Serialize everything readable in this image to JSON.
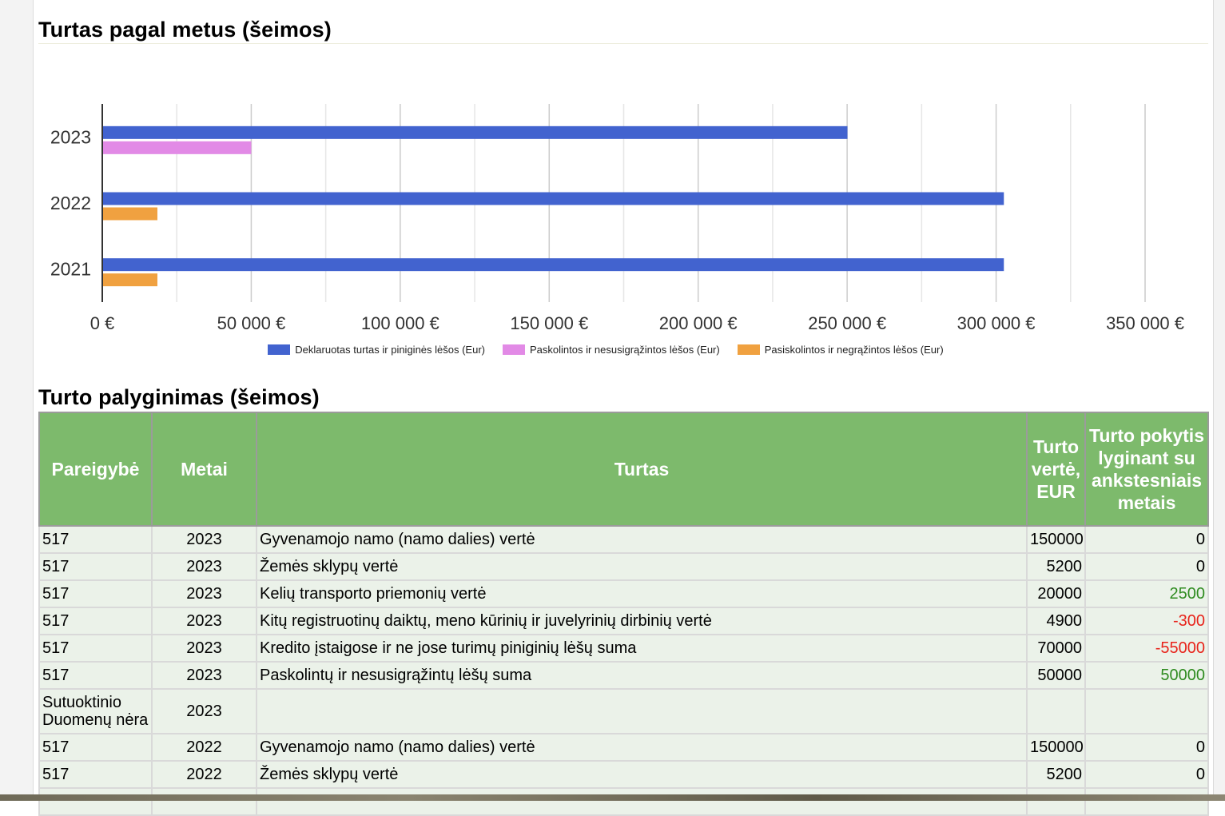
{
  "chart_title": "Turtas pagal metus (šeimos)",
  "table_title": "Turto palyginimas (šeimos)",
  "chart_data": {
    "type": "bar",
    "orientation": "horizontal",
    "categories": [
      "2023",
      "2022",
      "2021"
    ],
    "series": [
      {
        "name": "Deklaruotas turtas ir piniginės lėšos (Eur)",
        "color": "#4263cf",
        "values": [
          250100,
          302600,
          302600
        ]
      },
      {
        "name": "Paskolintos ir nesusigrąžintos lėšos (Eur)",
        "color": "#e28ae6",
        "values": [
          50000,
          null,
          null
        ]
      },
      {
        "name": "Pasiskolintos ir negrąžintos lėšos (Eur)",
        "color": "#f0a140",
        "values": [
          null,
          18500,
          18500
        ]
      }
    ],
    "xlim": [
      0,
      350000
    ],
    "xticks": [
      0,
      50000,
      100000,
      150000,
      200000,
      250000,
      300000,
      350000
    ],
    "xtick_labels": [
      "0 €",
      "50 000 €",
      "100 000 €",
      "150 000 €",
      "200 000 €",
      "250 000 €",
      "300 000 €",
      "350 000 €"
    ],
    "grid": true,
    "legend_position": "bottom"
  },
  "table": {
    "headers": [
      "Pareigybė",
      "Metai",
      "Turtas",
      "Turto vertė, EUR",
      "Turto pokytis lyginant su ankstesniais metais"
    ],
    "rows": [
      {
        "pareigybe": "517",
        "metai": "2023",
        "turtas": "Gyvenamojo namo (namo dalies) vertė",
        "verte": "150000",
        "pokytis": "0",
        "trend": "none"
      },
      {
        "pareigybe": "517",
        "metai": "2023",
        "turtas": "Žemės sklypų vertė",
        "verte": "5200",
        "pokytis": "0",
        "trend": "none"
      },
      {
        "pareigybe": "517",
        "metai": "2023",
        "turtas": "Kelių transporto priemonių vertė",
        "verte": "20000",
        "pokytis": "2500",
        "trend": "pos"
      },
      {
        "pareigybe": "517",
        "metai": "2023",
        "turtas": "Kitų registruotinų daiktų, meno kūrinių ir juvelyrinių dirbinių vertė",
        "verte": "4900",
        "pokytis": "-300",
        "trend": "neg"
      },
      {
        "pareigybe": "517",
        "metai": "2023",
        "turtas": "Kredito įstaigose ir ne jose turimų piniginių lėšų suma",
        "verte": "70000",
        "pokytis": "-55000",
        "trend": "neg"
      },
      {
        "pareigybe": "517",
        "metai": "2023",
        "turtas": "Paskolintų ir nesusigrąžintų lėšų suma",
        "verte": "50000",
        "pokytis": "50000",
        "trend": "pos"
      },
      {
        "pareigybe": "Sutuoktinio Duomenų nėra",
        "metai": "2023",
        "turtas": "",
        "verte": "",
        "pokytis": "",
        "trend": "none"
      },
      {
        "pareigybe": "517",
        "metai": "2022",
        "turtas": "Gyvenamojo namo (namo dalies) vertė",
        "verte": "150000",
        "pokytis": "0",
        "trend": "none"
      },
      {
        "pareigybe": "517",
        "metai": "2022",
        "turtas": "Žemės sklypų vertė",
        "verte": "5200",
        "pokytis": "0",
        "trend": "none"
      },
      {
        "pareigybe": "",
        "metai": "",
        "turtas": "",
        "verte": "",
        "pokytis": "",
        "trend": "none"
      }
    ]
  }
}
